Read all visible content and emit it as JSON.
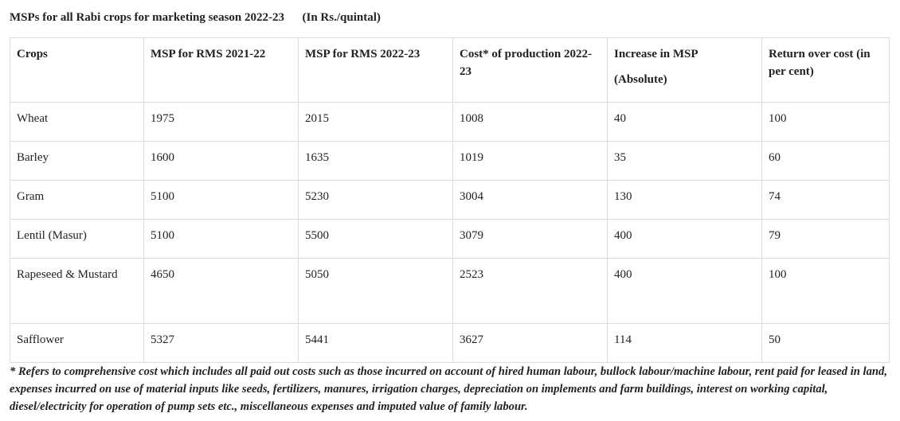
{
  "title": "MSPs for all Rabi crops for marketing season 2022-23      (In Rs./quintal)",
  "table": {
    "headers": [
      "Crops",
      "MSP for RMS 2021-22",
      "MSP for RMS 2022-23",
      "Cost* of production 2022-23",
      "Increase in MSP",
      "Return over cost (in per cent)"
    ],
    "header_sub": "(Absolute)",
    "rows": [
      [
        "Wheat",
        "1975",
        "2015",
        "1008",
        "40",
        "100"
      ],
      [
        "Barley",
        "1600",
        "1635",
        "1019",
        "35",
        "60"
      ],
      [
        "Gram",
        "5100",
        "5230",
        "3004",
        "130",
        "74"
      ],
      [
        "Lentil (Masur)",
        "5100",
        "5500",
        "3079",
        "400",
        "79"
      ],
      [
        "Rapeseed & Mustard",
        "4650",
        "5050",
        "2523",
        "400",
        "100"
      ],
      [
        "Safflower",
        "5327",
        "5441",
        "3627",
        "114",
        "50"
      ]
    ]
  },
  "footnote": "* Refers to comprehensive cost which includes all paid out costs such as those incurred on account of hired human labour, bullock labour/machine labour, rent paid for leased in land, expenses incurred on use of material inputs like seeds, fertilizers, manures, irrigation charges, depreciation on implements and farm buildings, interest on working capital, diesel/electricity for operation of pump sets etc., miscellaneous expenses and imputed value of family labour."
}
